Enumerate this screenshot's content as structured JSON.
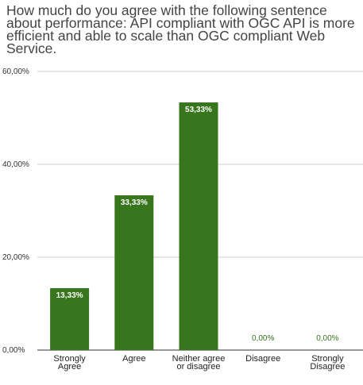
{
  "chart_data": {
    "type": "bar",
    "title": "How much do you agree with the following sentence about performance: API compliant with OGC API is more efficient and able to scale than OGC compliant Web Service.",
    "categories": [
      [
        "Strongly",
        "Agree"
      ],
      [
        "Agree"
      ],
      [
        "Neither agree",
        "or disagree"
      ],
      [
        "Disagree"
      ],
      [
        "Strongly",
        "Disagree"
      ]
    ],
    "values": [
      13.33,
      33.33,
      53.33,
      0.0,
      0.0
    ],
    "value_labels": [
      "13,33%",
      "33,33%",
      "53,33%",
      "0,00%",
      "0,00%"
    ],
    "y_ticks": [
      0,
      20,
      40,
      60
    ],
    "y_tick_labels": [
      "0,00%",
      "20,00%",
      "40,00%",
      "60,00%"
    ],
    "ylim": [
      0,
      60
    ],
    "grid": true,
    "colors": {
      "bar": "#38761d",
      "grid": "#cccccc",
      "axis": "#333333",
      "label_outside": "#38761d"
    }
  }
}
